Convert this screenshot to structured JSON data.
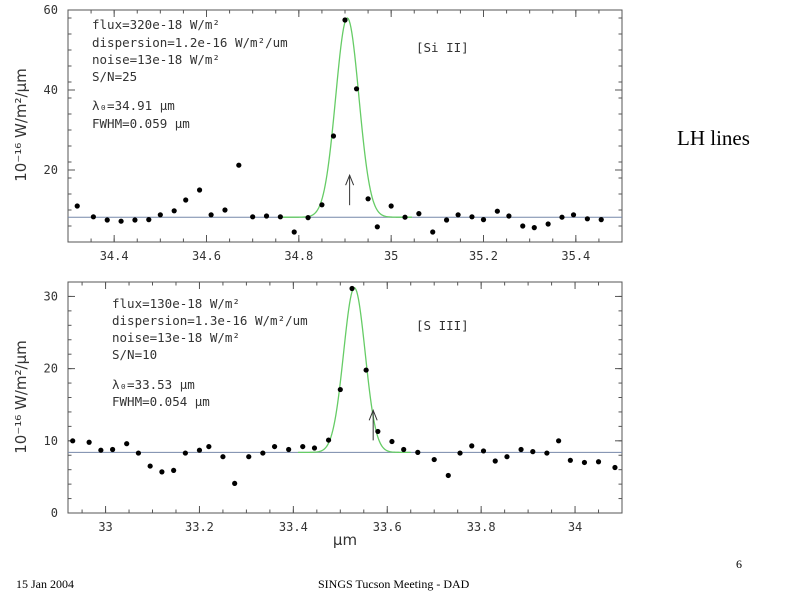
{
  "slide": {
    "title": "LH lines",
    "footer_date": "15 Jan 2004",
    "footer_meeting": "SINGS Tucson Meeting - DAD",
    "page_number": "6"
  },
  "colors": {
    "fit": "#66cc66",
    "baseline": "#7788aa",
    "points": "#000000",
    "axes": "#555555"
  },
  "chart_data": [
    {
      "type": "scatter",
      "id": "si2",
      "species_label": "[Si II]",
      "xlabel": "",
      "ylabel": "10⁻¹⁶ W/m²/μm",
      "xlim": [
        34.3,
        35.5
      ],
      "ylim": [
        2,
        60
      ],
      "xticks": [
        34.4,
        34.6,
        34.8,
        35,
        35.2,
        35.4
      ],
      "xtick_labels": [
        "34.4",
        "34.6",
        "34.8",
        "35",
        "35.2",
        "35.4"
      ],
      "yticks": [
        20,
        40,
        60
      ],
      "ytick_labels": [
        "20",
        "40",
        "60"
      ],
      "annotations": [
        "flux=320e-18 W/m²",
        "dispersion=1.2e-16 W/m²/um",
        "noise=13e-18 W/m²",
        "S/N=25",
        "",
        "λ₀=34.91 μm",
        "FWHM=0.059 μm"
      ],
      "baseline": 8.2,
      "fit": {
        "center": 34.905,
        "fwhm": 0.059,
        "peak": 58.0,
        "xrange": [
          34.765,
          35.045
        ]
      },
      "arrow_x": 34.91,
      "points": [
        [
          34.32,
          11
        ],
        [
          34.355,
          8.3
        ],
        [
          34.385,
          7.5
        ],
        [
          34.415,
          7.2
        ],
        [
          34.445,
          7.5
        ],
        [
          34.475,
          7.6
        ],
        [
          34.5,
          8.8
        ],
        [
          34.53,
          9.8
        ],
        [
          34.555,
          12.5
        ],
        [
          34.585,
          15
        ],
        [
          34.61,
          8.8
        ],
        [
          34.64,
          10
        ],
        [
          34.67,
          21.2
        ],
        [
          34.7,
          8.3
        ],
        [
          34.73,
          8.5
        ],
        [
          34.76,
          8.3
        ],
        [
          34.79,
          4.5
        ],
        [
          34.82,
          8.1
        ],
        [
          34.85,
          11.3
        ],
        [
          34.875,
          28.5
        ],
        [
          34.9,
          57.5
        ],
        [
          34.925,
          40.3
        ],
        [
          34.95,
          12.8
        ],
        [
          34.97,
          5.8
        ],
        [
          35.0,
          11
        ],
        [
          35.03,
          8.2
        ],
        [
          35.06,
          9.1
        ],
        [
          35.09,
          4.5
        ],
        [
          35.12,
          7.5
        ],
        [
          35.145,
          8.8
        ],
        [
          35.175,
          8.3
        ],
        [
          35.2,
          7.6
        ],
        [
          35.23,
          9.7
        ],
        [
          35.255,
          8.5
        ],
        [
          35.285,
          6
        ],
        [
          35.31,
          5.6
        ],
        [
          35.34,
          6.5
        ],
        [
          35.37,
          8.2
        ],
        [
          35.395,
          8.8
        ],
        [
          35.425,
          7.8
        ],
        [
          35.455,
          7.6
        ]
      ]
    },
    {
      "type": "scatter",
      "id": "s3",
      "species_label": "[S III]",
      "xlabel": "μm",
      "ylabel": "10⁻¹⁶ W/m²/μm",
      "xlim": [
        32.92,
        34.1
      ],
      "ylim": [
        0,
        32
      ],
      "xticks": [
        33,
        33.2,
        33.4,
        33.6,
        33.8,
        34
      ],
      "xtick_labels": [
        "33",
        "33.2",
        "33.4",
        "33.6",
        "33.8",
        "34"
      ],
      "yticks": [
        0,
        10,
        20,
        30
      ],
      "ytick_labels": [
        "0",
        "10",
        "20",
        "30"
      ],
      "annotations": [
        "flux=130e-18 W/m²",
        "dispersion=1.3e-16 W/m²/um",
        "noise=13e-18 W/m²",
        "S/N=10",
        "",
        "λ₀=33.53 μm",
        "FWHM=0.054 μm"
      ],
      "baseline": 8.4,
      "fit": {
        "center": 33.53,
        "fwhm": 0.054,
        "peak": 31.2,
        "xrange": [
          33.41,
          33.65
        ]
      },
      "arrow_x": 33.57,
      "points": [
        [
          32.93,
          10
        ],
        [
          32.965,
          9.8
        ],
        [
          32.99,
          8.7
        ],
        [
          33.015,
          8.8
        ],
        [
          33.045,
          9.6
        ],
        [
          33.07,
          8.3
        ],
        [
          33.095,
          6.5
        ],
        [
          33.12,
          5.7
        ],
        [
          33.145,
          5.9
        ],
        [
          33.17,
          8.3
        ],
        [
          33.2,
          8.7
        ],
        [
          33.22,
          9.2
        ],
        [
          33.25,
          7.8
        ],
        [
          33.275,
          4.1
        ],
        [
          33.305,
          7.8
        ],
        [
          33.335,
          8.3
        ],
        [
          33.36,
          9.2
        ],
        [
          33.39,
          8.8
        ],
        [
          33.42,
          9.2
        ],
        [
          33.445,
          9
        ],
        [
          33.475,
          10.1
        ],
        [
          33.5,
          17.1
        ],
        [
          33.525,
          31.1
        ],
        [
          33.555,
          19.8
        ],
        [
          33.58,
          11.3
        ],
        [
          33.61,
          9.9
        ],
        [
          33.635,
          8.8
        ],
        [
          33.665,
          8.4
        ],
        [
          33.7,
          7.4
        ],
        [
          33.73,
          5.2
        ],
        [
          33.755,
          8.3
        ],
        [
          33.78,
          9.3
        ],
        [
          33.805,
          8.6
        ],
        [
          33.83,
          7.2
        ],
        [
          33.855,
          7.8
        ],
        [
          33.885,
          8.8
        ],
        [
          33.91,
          8.5
        ],
        [
          33.94,
          8.3
        ],
        [
          33.965,
          10
        ],
        [
          33.99,
          7.3
        ],
        [
          34.02,
          7
        ],
        [
          34.05,
          7.1
        ],
        [
          34.085,
          6.3
        ]
      ]
    }
  ]
}
